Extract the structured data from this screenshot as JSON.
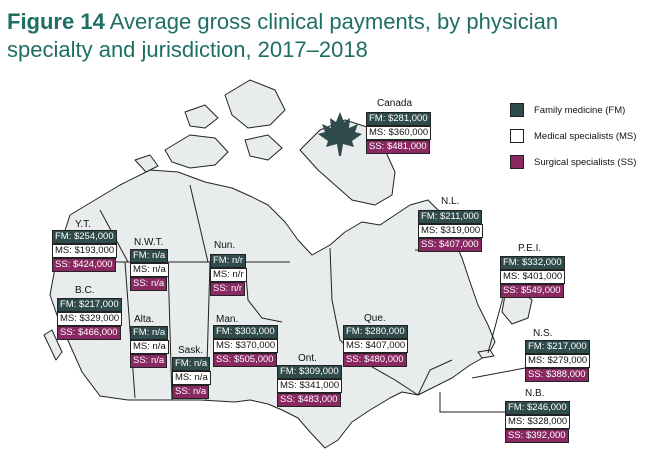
{
  "title": {
    "figure": "Figure 14",
    "text": "Average gross clinical payments, by physician specialty and jurisdiction, 2017–2018"
  },
  "legend": [
    {
      "label": "Family medicine (FM)",
      "color": "#2f4b4b"
    },
    {
      "label": "Medical specialists (MS)",
      "color": "#ffffff"
    },
    {
      "label": "Surgical specialists (SS)",
      "color": "#8a2862"
    }
  ],
  "icon": "maple-leaf-icon",
  "regions": {
    "canada": {
      "name": "Canada",
      "fm": "FM: $281,000",
      "ms": "MS: $360,000",
      "ss": "SS: $481,000"
    },
    "yt": {
      "name": "Y.T.",
      "fm": "FM: $254,000",
      "ms": "MS: $193,000",
      "ss": "SS: $424,000"
    },
    "nwt": {
      "name": "N.W.T.",
      "fm": "FM: n/a",
      "ms": "MS: n/a",
      "ss": "SS: n/a"
    },
    "nun": {
      "name": "Nun.",
      "fm": "FM: n/r",
      "ms": "MS: n/r",
      "ss": "SS: n/r"
    },
    "bc": {
      "name": "B.C.",
      "fm": "FM: $217,000",
      "ms": "MS: $329,000",
      "ss": "SS: $466,000"
    },
    "alta": {
      "name": "Alta.",
      "fm": "FM: n/a",
      "ms": "MS: n/a",
      "ss": "SS: n/a"
    },
    "sask": {
      "name": "Sask.",
      "fm": "FM: n/a",
      "ms": "MS: n/a",
      "ss": "SS: n/a"
    },
    "man": {
      "name": "Man.",
      "fm": "FM: $303,000",
      "ms": "MS: $370,000",
      "ss": "SS: $505,000"
    },
    "ont": {
      "name": "Ont.",
      "fm": "FM: $309,000",
      "ms": "MS: $341,000",
      "ss": "SS: $483,000"
    },
    "que": {
      "name": "Que.",
      "fm": "FM: $280,000",
      "ms": "MS: $407,000",
      "ss": "SS: $480,000"
    },
    "nl": {
      "name": "N.L.",
      "fm": "FM: $211,000",
      "ms": "MS: $319,000",
      "ss": "SS: $407,000"
    },
    "pei": {
      "name": "P.E.I.",
      "fm": "FM: $332,000",
      "ms": "MS: $401,000",
      "ss": "SS: $549,000"
    },
    "ns": {
      "name": "N.S.",
      "fm": "FM: $217,000",
      "ms": "MS: $279,000",
      "ss": "SS: $388,000"
    },
    "nb": {
      "name": "N.B.",
      "fm": "FM: $246,000",
      "ms": "MS: $328,000",
      "ss": "SS: $392,000"
    }
  }
}
